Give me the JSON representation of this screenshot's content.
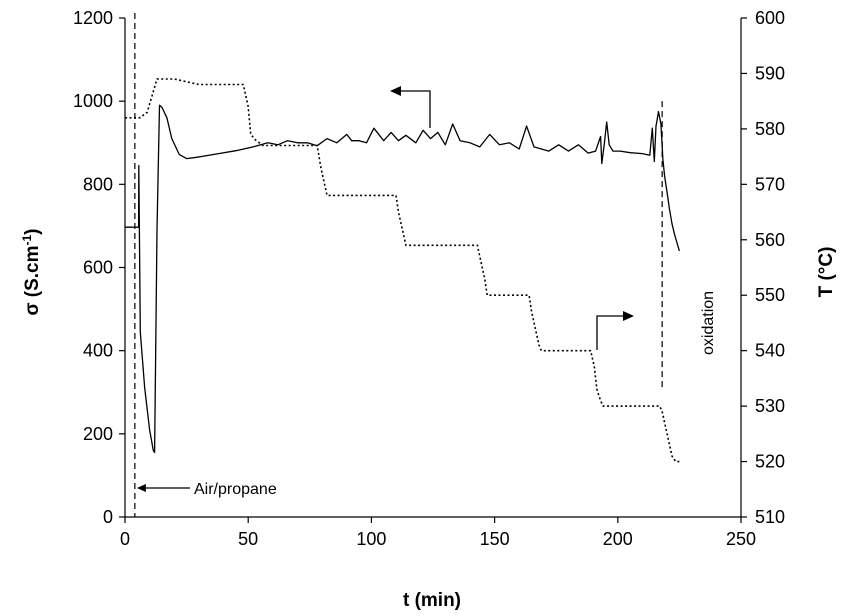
{
  "chart_data": {
    "type": "line",
    "title": "",
    "xlabel": "t (min)",
    "ylabel_left": "σ (S.cm",
    "ylabel_left_sup": "-1",
    "ylabel_left_end": ")",
    "ylabel_right": "T (°C)",
    "xlim": [
      0,
      250
    ],
    "ylim_left": [
      0,
      1200
    ],
    "ylim_right": [
      510,
      600
    ],
    "x_ticks": [
      "0",
      "50",
      "100",
      "150",
      "200",
      "250"
    ],
    "y_left_ticks": [
      "0",
      "200",
      "400",
      "600",
      "800",
      "1000",
      "1200"
    ],
    "y_right_ticks": [
      "510",
      "520",
      "530",
      "540",
      "550",
      "560",
      "570",
      "580",
      "590",
      "600"
    ],
    "grid": false,
    "annotations": {
      "air_propane": "Air/propane",
      "oxidation": "oxidation"
    },
    "series": [
      {
        "axis": "left",
        "style": "solid",
        "x": [
          0,
          5,
          5.05,
          5.5,
          5.6,
          6.2,
          8,
          10,
          11.5,
          12,
          13,
          14,
          15,
          17,
          19,
          22,
          25,
          28,
          32,
          38,
          45,
          52,
          58,
          62,
          66,
          70,
          74,
          78,
          82,
          86,
          90,
          92,
          95,
          98,
          101,
          105,
          108,
          111,
          114,
          118,
          121,
          124,
          127,
          130,
          133,
          136,
          140,
          144,
          148,
          152,
          156,
          160,
          163,
          166,
          169,
          172,
          176,
          180,
          184,
          188,
          191,
          193,
          193.5,
          194.5,
          195.5,
          196.5,
          198,
          201,
          205,
          210,
          213,
          214,
          214.8,
          215.5,
          216.5,
          217.5,
          218.3,
          219,
          220,
          221,
          222,
          223,
          224,
          225
        ],
        "y": [
          697,
          697,
          697,
          697,
          845,
          445,
          310,
          210,
          160,
          155,
          690,
          990,
          985,
          960,
          910,
          872,
          862,
          864,
          868,
          874,
          881,
          890,
          900,
          895,
          905,
          900,
          900,
          893,
          910,
          900,
          920,
          905,
          905,
          900,
          935,
          905,
          925,
          905,
          918,
          900,
          930,
          910,
          925,
          895,
          945,
          905,
          900,
          890,
          920,
          895,
          900,
          885,
          940,
          890,
          885,
          880,
          895,
          880,
          895,
          875,
          880,
          915,
          850,
          895,
          950,
          895,
          880,
          880,
          876,
          874,
          870,
          935,
          855,
          940,
          975,
          945,
          860,
          820,
          780,
          740,
          705,
          680,
          660,
          640
        ]
      },
      {
        "axis": "right",
        "style": "dotted",
        "x": [
          0,
          3,
          6,
          9,
          11,
          13,
          15,
          20,
          30,
          40,
          48,
          50,
          51,
          53,
          56,
          60,
          70,
          78,
          79.5,
          81,
          82,
          90,
          100,
          110,
          111,
          112.5,
          114,
          115,
          120,
          130,
          140,
          143,
          144.5,
          146,
          147,
          155,
          164,
          165,
          166.5,
          168,
          169,
          175,
          185,
          189,
          190.5,
          191.5,
          193,
          194,
          200,
          210,
          215,
          216,
          217,
          218,
          219,
          220,
          222,
          223.5,
          225
        ],
        "y": [
          582,
          582,
          582,
          583,
          586,
          589,
          589,
          589,
          588,
          588,
          588,
          584,
          579,
          578,
          577,
          577,
          577,
          577,
          573,
          570,
          568,
          568,
          568,
          568,
          565,
          562,
          559,
          559,
          559,
          559,
          559,
          559,
          556,
          553,
          550,
          550,
          550,
          547,
          544,
          541,
          540,
          540,
          540,
          540,
          537,
          533,
          531,
          530,
          530,
          530,
          530,
          530,
          530,
          529,
          527,
          525,
          521,
          520,
          520
        ]
      }
    ]
  }
}
